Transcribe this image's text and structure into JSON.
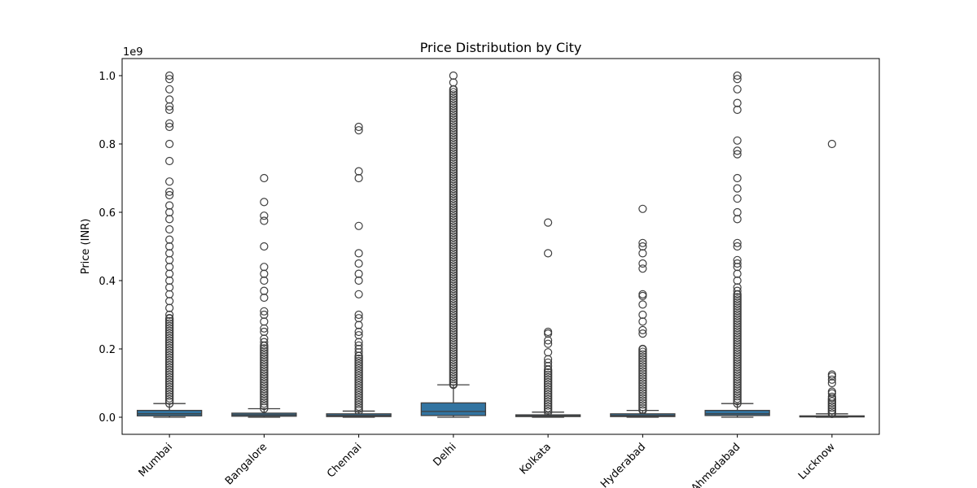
{
  "chart_data": {
    "type": "box",
    "title": "Price Distribution by City",
    "xlabel": "",
    "ylabel": "Price (INR)",
    "y_offset_label": "1e9",
    "y_scale": 1000000000,
    "ylim": [
      -50000000,
      1050000000
    ],
    "yticks": [
      0,
      200000000,
      400000000,
      600000000,
      800000000,
      1000000000
    ],
    "ytick_labels": [
      "0.0",
      "0.2",
      "0.4",
      "0.6",
      "0.8",
      "1.0"
    ],
    "grid": false,
    "box_color": "#3274a1",
    "line_color": "#3f3f3f",
    "categories": [
      "Mumbai",
      "Bangalore",
      "Chennai",
      "Delhi",
      "Kolkata",
      "Hyderabad",
      "Ahmedabad",
      "Lucknow"
    ],
    "boxes": [
      {
        "category": "Mumbai",
        "whisker_low": 0,
        "q1": 4000000,
        "median": 10000000,
        "q3": 20000000,
        "whisker_high": 40000000,
        "outlier_range": [
          40000000,
          290000000
        ],
        "outliers": [
          300000000,
          320000000,
          340000000,
          360000000,
          380000000,
          400000000,
          420000000,
          440000000,
          460000000,
          480000000,
          500000000,
          520000000,
          550000000,
          580000000,
          600000000,
          620000000,
          650000000,
          660000000,
          690000000,
          750000000,
          800000000,
          850000000,
          860000000,
          900000000,
          910000000,
          930000000,
          960000000,
          990000000,
          1000000000
        ]
      },
      {
        "category": "Bangalore",
        "whisker_low": 0,
        "q1": 3000000,
        "median": 7000000,
        "q3": 12000000,
        "whisker_high": 25000000,
        "outlier_range": [
          25000000,
          210000000
        ],
        "outliers": [
          220000000,
          230000000,
          250000000,
          260000000,
          280000000,
          300000000,
          310000000,
          350000000,
          370000000,
          400000000,
          420000000,
          440000000,
          500000000,
          575000000,
          590000000,
          630000000,
          700000000
        ]
      },
      {
        "category": "Chennai",
        "whisker_low": 0,
        "q1": 2000000,
        "median": 5000000,
        "q3": 10000000,
        "whisker_high": 18000000,
        "outlier_range": [
          18000000,
          180000000
        ],
        "outliers": [
          190000000,
          200000000,
          210000000,
          220000000,
          240000000,
          250000000,
          270000000,
          290000000,
          300000000,
          360000000,
          400000000,
          420000000,
          450000000,
          480000000,
          560000000,
          700000000,
          720000000,
          840000000,
          850000000
        ]
      },
      {
        "category": "Delhi",
        "whisker_low": 0,
        "q1": 5000000,
        "median": 17000000,
        "q3": 42000000,
        "whisker_high": 95000000,
        "outlier_range": [
          95000000,
          960000000
        ],
        "outliers": [
          980000000,
          1000000000
        ]
      },
      {
        "category": "Kolkata",
        "whisker_low": 0,
        "q1": 2000000,
        "median": 4000000,
        "q3": 7000000,
        "whisker_high": 15000000,
        "outlier_range": [
          15000000,
          140000000
        ],
        "outliers": [
          150000000,
          160000000,
          170000000,
          190000000,
          215000000,
          225000000,
          245000000,
          250000000,
          480000000,
          570000000
        ]
      },
      {
        "category": "Hyderabad",
        "whisker_low": 0,
        "q1": 2000000,
        "median": 5000000,
        "q3": 10000000,
        "whisker_high": 20000000,
        "outlier_range": [
          20000000,
          200000000
        ],
        "outliers": [
          245000000,
          255000000,
          280000000,
          300000000,
          330000000,
          355000000,
          360000000,
          435000000,
          450000000,
          480000000,
          500000000,
          510000000,
          610000000
        ]
      },
      {
        "category": "Ahmedabad",
        "whisker_low": 0,
        "q1": 5000000,
        "median": 10000000,
        "q3": 20000000,
        "whisker_high": 40000000,
        "outlier_range": [
          40000000,
          360000000
        ],
        "outliers": [
          370000000,
          380000000,
          400000000,
          420000000,
          440000000,
          450000000,
          460000000,
          500000000,
          510000000,
          580000000,
          600000000,
          640000000,
          670000000,
          700000000,
          770000000,
          780000000,
          810000000,
          900000000,
          920000000,
          960000000,
          990000000,
          1000000000
        ]
      },
      {
        "category": "Lucknow",
        "whisker_low": 0,
        "q1": 1000000,
        "median": 2000000,
        "q3": 4000000,
        "whisker_high": 10000000,
        "outlier_range": [
          10000000,
          55000000
        ],
        "outliers": [
          60000000,
          70000000,
          75000000,
          100000000,
          110000000,
          120000000,
          125000000,
          800000000
        ]
      }
    ]
  }
}
